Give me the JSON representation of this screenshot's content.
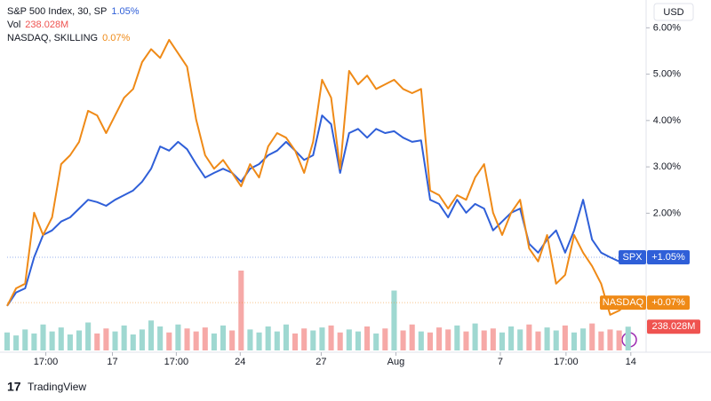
{
  "chart_data": {
    "type": "line",
    "ylim": [
      -0.96,
      6.6
    ],
    "yticks": [
      {
        "value": 2,
        "label": "2.00%"
      },
      {
        "value": 3,
        "label": "3.00%"
      },
      {
        "value": 4,
        "label": "4.00%"
      },
      {
        "value": 5,
        "label": "5.00%"
      },
      {
        "value": 6,
        "label": "6.00%"
      }
    ],
    "xlim": [
      0,
      71
    ],
    "xticks": [
      {
        "value": 4.3,
        "label": "17:00"
      },
      {
        "value": 11.7,
        "label": "17"
      },
      {
        "value": 18.8,
        "label": "17:00"
      },
      {
        "value": 25.9,
        "label": "24"
      },
      {
        "value": 34.9,
        "label": "27"
      },
      {
        "value": 43.2,
        "label": "Aug"
      },
      {
        "value": 54.8,
        "label": "7"
      },
      {
        "value": 62.1,
        "label": "17:00"
      },
      {
        "value": 69.3,
        "label": "14"
      }
    ],
    "currency": "USD",
    "series": [
      {
        "name": "S&P 500 Index, 30, SP",
        "short_name": "SPX",
        "legend_value": "1.05%",
        "tag_value": "+1.05%",
        "color": "#2f5fd8",
        "values": [
          0,
          0.29,
          0.38,
          1.05,
          1.53,
          1.63,
          1.82,
          1.91,
          2.1,
          2.29,
          2.24,
          2.16,
          2.29,
          2.39,
          2.49,
          2.68,
          2.96,
          3.44,
          3.35,
          3.54,
          3.38,
          3.06,
          2.77,
          2.87,
          2.96,
          2.87,
          2.68,
          2.96,
          3.06,
          3.25,
          3.35,
          3.54,
          3.35,
          3.15,
          3.25,
          4.11,
          3.92,
          2.87,
          3.73,
          3.82,
          3.63,
          3.82,
          3.73,
          3.77,
          3.63,
          3.54,
          3.57,
          2.29,
          2.2,
          1.91,
          2.29,
          2.01,
          2.2,
          2.1,
          1.63,
          1.82,
          2.01,
          2.1,
          1.34,
          1.15,
          1.43,
          1.63,
          1.15,
          1.63,
          2.29,
          1.43,
          1.15,
          1.05,
          0.96,
          1.05
        ]
      },
      {
        "name": "NASDAQ, SKILLING",
        "short_name": "NASDAQ",
        "legend_value": "0.07%",
        "tag_value": "+0.07%",
        "color": "#ef8a17",
        "values": [
          0,
          0.38,
          0.48,
          2.01,
          1.53,
          1.91,
          3.06,
          3.25,
          3.54,
          4.21,
          4.11,
          3.73,
          4.11,
          4.49,
          4.68,
          5.26,
          5.54,
          5.35,
          5.74,
          5.45,
          5.16,
          4.02,
          3.25,
          2.96,
          3.15,
          2.87,
          2.58,
          3.06,
          2.77,
          3.44,
          3.73,
          3.63,
          3.35,
          2.87,
          3.54,
          4.88,
          4.49,
          2.96,
          5.07,
          4.78,
          4.97,
          4.68,
          4.78,
          4.88,
          4.68,
          4.59,
          4.68,
          2.49,
          2.39,
          2.1,
          2.39,
          2.29,
          2.77,
          3.06,
          2.01,
          1.53,
          2.01,
          2.29,
          1.24,
          0.96,
          1.53,
          0.48,
          0.67,
          1.53,
          1.15,
          0.86,
          0.48,
          -0.19,
          -0.1,
          0.07
        ]
      }
    ],
    "volume": {
      "name": "Vol",
      "legend_value": "238.028M",
      "tag_value": "238.028M",
      "color": "#ef5350",
      "up_color": "#9fd8d1",
      "down_color": "#f6a9a7",
      "values": [
        180,
        150,
        210,
        170,
        260,
        190,
        230,
        160,
        200,
        280,
        170,
        220,
        190,
        250,
        160,
        210,
        300,
        240,
        180,
        260,
        220,
        190,
        230,
        170,
        250,
        200,
        800,
        210,
        180,
        240,
        190,
        260,
        170,
        220,
        200,
        230,
        250,
        180,
        210,
        190,
        240,
        170,
        220,
        600,
        200,
        260,
        190,
        180,
        230,
        210,
        250,
        190,
        270,
        200,
        220,
        180,
        240,
        210,
        260,
        190,
        230,
        200,
        250,
        180,
        220,
        270,
        190,
        210,
        200,
        238.028
      ]
    },
    "footer": "TradingView"
  }
}
